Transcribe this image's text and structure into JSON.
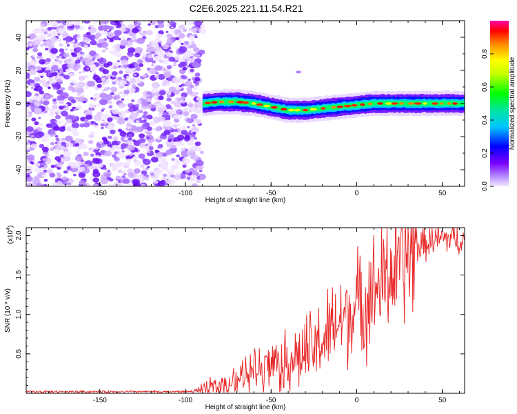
{
  "title": "C2E6.2025.221.11.54.R21",
  "chart_data": [
    {
      "type": "heatmap",
      "xlabel": "Height of straight line (km)",
      "ylabel": "Frequency (Hz)",
      "xlim": [
        -193,
        63
      ],
      "ylim": [
        -50,
        50
      ],
      "x_ticks": [
        -150,
        -100,
        -50,
        0,
        50
      ],
      "y_ticks": [
        -40,
        -20,
        0,
        20,
        40
      ],
      "colorbar": {
        "label": "Normalized spectral amplitude",
        "range": [
          0,
          1
        ],
        "ticks": [
          "0.0",
          "0.2",
          "0.4",
          "0.6",
          "0.8"
        ]
      },
      "ridge": [
        [
          -90,
          0
        ],
        [
          -80,
          1
        ],
        [
          -70,
          1
        ],
        [
          -60,
          0
        ],
        [
          -50,
          -2
        ],
        [
          -40,
          -4
        ],
        [
          -30,
          -4
        ],
        [
          -20,
          -3
        ],
        [
          -10,
          -2
        ],
        [
          0,
          -1
        ],
        [
          10,
          0
        ],
        [
          20,
          0
        ],
        [
          30,
          0
        ],
        [
          40,
          0
        ],
        [
          50,
          0
        ],
        [
          63,
          0
        ]
      ],
      "noise_region": [
        -193,
        -92
      ],
      "grid": false
    },
    {
      "type": "line",
      "xlabel": "Height of straight line (km)",
      "ylabel": "SNR (10 * v/v)",
      "y_multiplier": "(x10",
      "y_multiplier_exp": "4",
      "xlim": [
        -193,
        63
      ],
      "ylim": [
        0,
        2.1
      ],
      "x_ticks": [
        -150,
        -100,
        -50,
        0,
        50
      ],
      "y_ticks": [
        "0.5",
        "1.0",
        "1.5",
        "2.0"
      ],
      "color": "#e82a2a",
      "trend": [
        [
          -193,
          0.02
        ],
        [
          -100,
          0.02
        ],
        [
          -92,
          0.03
        ],
        [
          -85,
          0.08
        ],
        [
          -75,
          0.12
        ],
        [
          -65,
          0.25
        ],
        [
          -55,
          0.35
        ],
        [
          -45,
          0.4
        ],
        [
          -35,
          0.45
        ],
        [
          -25,
          0.55
        ],
        [
          -15,
          0.8
        ],
        [
          -5,
          1.0
        ],
        [
          5,
          1.2
        ],
        [
          15,
          1.4
        ],
        [
          25,
          1.65
        ],
        [
          35,
          1.85
        ],
        [
          45,
          1.95
        ],
        [
          55,
          1.97
        ],
        [
          63,
          1.95
        ]
      ],
      "grid": false
    }
  ]
}
